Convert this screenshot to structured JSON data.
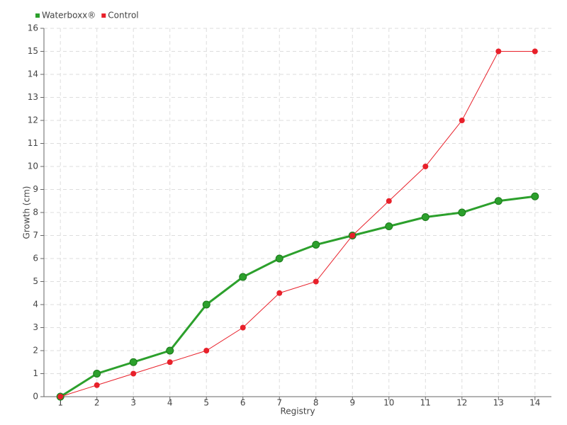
{
  "chart_data": {
    "type": "line",
    "x_label": "Registry",
    "y_label": "Growth (cm)",
    "x": [
      1,
      2,
      3,
      4,
      5,
      6,
      7,
      8,
      9,
      10,
      11,
      12,
      13,
      14
    ],
    "xlim": [
      0.55,
      14.45
    ],
    "xticks": [
      1,
      2,
      3,
      4,
      5,
      6,
      7,
      8,
      9,
      10,
      11,
      12,
      13,
      14
    ],
    "ylim": [
      0,
      16
    ],
    "yticks": [
      0,
      1,
      2,
      3,
      4,
      5,
      6,
      7,
      8,
      9,
      10,
      11,
      12,
      13,
      14,
      15,
      16
    ],
    "grid": true,
    "legend": "top-left",
    "series": [
      {
        "name": "Waterboxx®",
        "color": "#2ca02c",
        "values": [
          0,
          1,
          1.5,
          2,
          4,
          5.2,
          6,
          6.6,
          7,
          7.4,
          7.8,
          8,
          8.5,
          8.7
        ]
      },
      {
        "name": "Control",
        "color": "#e8202a",
        "values": [
          0,
          0.5,
          1,
          1.5,
          2,
          3,
          4.5,
          5,
          7,
          8.5,
          10,
          12,
          15,
          15
        ]
      }
    ]
  }
}
